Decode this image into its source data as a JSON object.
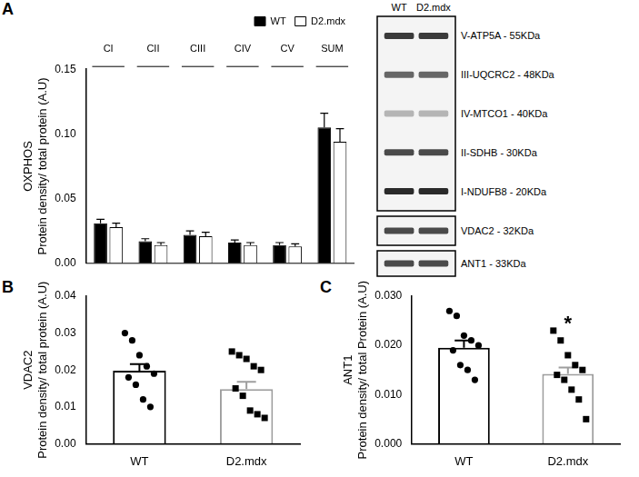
{
  "chart_data": [
    {
      "panel": "A",
      "type": "bar",
      "ylabel": [
        "OXPHOS",
        "Protein density/ total protein (A.U)"
      ],
      "categories": [
        "CI",
        "CII",
        "CIII",
        "CIV",
        "CV",
        "SUM"
      ],
      "series": [
        {
          "name": "WT",
          "color": "#000000",
          "values": [
            0.031,
            0.017,
            0.022,
            0.016,
            0.014,
            0.105
          ],
          "errors": [
            0.003,
            0.002,
            0.003,
            0.002,
            0.002,
            0.011
          ]
        },
        {
          "name": "D2.mdx",
          "color": "#ffffff",
          "values": [
            0.028,
            0.014,
            0.021,
            0.014,
            0.013,
            0.094
          ],
          "errors": [
            0.003,
            0.002,
            0.003,
            0.002,
            0.002,
            0.01
          ]
        }
      ],
      "ylim": [
        0,
        0.15
      ],
      "yticks": [
        {
          "value": 0,
          "label": "0.00"
        },
        {
          "value": 0.05,
          "label": "0.05"
        },
        {
          "value": 0.1,
          "label": "0.10"
        },
        {
          "value": 0.15,
          "label": "0.15"
        }
      ],
      "legend": "top-right",
      "grid": false
    },
    {
      "panel": "B",
      "type": "bar",
      "ylabel": [
        "VDAC2",
        "Protein density/ total protein (A.U)"
      ],
      "categories": [
        "WT",
        "D2.mdx"
      ],
      "values": [
        0.0198,
        0.0148
      ],
      "errors": [
        0.0018,
        0.002
      ],
      "colors": [
        "#000000",
        "#9e9e9e"
      ],
      "points": [
        {
          "category": "WT",
          "marker": "circle",
          "values": [
            0.03,
            0.028,
            0.024,
            0.021,
            0.019,
            0.018,
            0.016,
            0.012,
            0.01
          ]
        },
        {
          "category": "D2.mdx",
          "marker": "square",
          "values": [
            0.025,
            0.024,
            0.023,
            0.021,
            0.02,
            0.015,
            0.013,
            0.009,
            0.008,
            0.007
          ]
        }
      ],
      "ylim": [
        0,
        0.04
      ],
      "yticks": [
        {
          "value": 0,
          "label": "0.00"
        },
        0.01,
        0.02,
        0.03,
        0.04
      ],
      "grid": false
    },
    {
      "panel": "C",
      "type": "bar",
      "ylabel": [
        "ANT1",
        "Protein density/ total Protein (A.U)"
      ],
      "categories": [
        "WT",
        "D2.mdx"
      ],
      "values": [
        0.0195,
        0.0142
      ],
      "errors": [
        0.0015,
        0.0013
      ],
      "colors": [
        "#000000",
        "#9e9e9e"
      ],
      "points": [
        {
          "category": "WT",
          "marker": "circle",
          "values": [
            0.027,
            0.026,
            0.022,
            0.021,
            0.02,
            0.019,
            0.016,
            0.015,
            0.013
          ]
        },
        {
          "category": "D2.mdx",
          "marker": "square",
          "values": [
            0.023,
            0.021,
            0.018,
            0.016,
            0.015,
            0.014,
            0.013,
            0.011,
            0.009,
            0.005
          ]
        }
      ],
      "annotations": [
        {
          "category": "D2.mdx",
          "text": "*"
        }
      ],
      "ylim": [
        0,
        0.03
      ],
      "yticks": [
        {
          "value": 0,
          "label": "0.000"
        },
        {
          "value": 0.01,
          "label": "0.010"
        },
        {
          "value": 0.02,
          "label": "0.020"
        },
        {
          "value": 0.03,
          "label": "0.030"
        }
      ],
      "grid": false
    }
  ],
  "blot": {
    "lanes": [
      "WT",
      "D2.mdx"
    ],
    "boxes": [
      [
        "V-ATP5A - 55KDa",
        "III-UQCRC2 - 48KDa",
        "IV-MTCO1 - 40KDa",
        "II-SDHB - 30KDa",
        "I-NDUFB8 - 20KDa"
      ],
      [
        "VDAC2 - 32KDa"
      ],
      [
        "ANT1 - 33KDa"
      ]
    ]
  }
}
